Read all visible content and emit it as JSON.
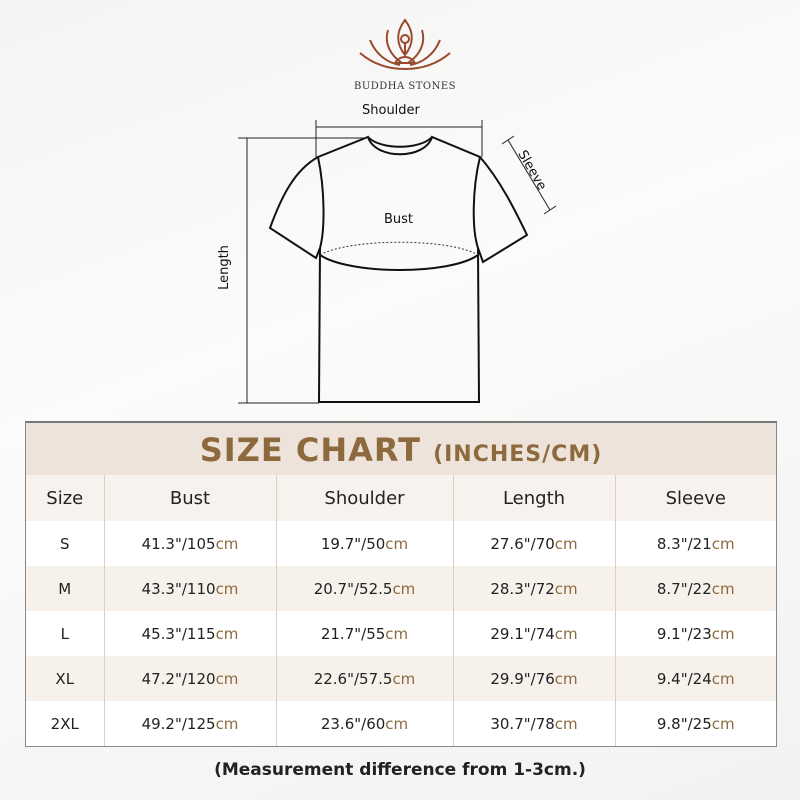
{
  "brand": {
    "name": "BUDDHA STONES",
    "logo": "lotus-meditation-logo"
  },
  "diagram": {
    "shoulder": "Shoulder",
    "sleeve": "Sleeve",
    "bust": "Bust",
    "length": "Length"
  },
  "chart": {
    "title": "SIZE CHART",
    "title_units": "(INCHES/CM)",
    "headers": [
      "Size",
      "Bust",
      "Shoulder",
      "Length",
      "Sleeve"
    ],
    "rows": [
      [
        "S",
        "41.3\"/105",
        "19.7\"/50",
        "27.6\"/70",
        "8.3\"/21"
      ],
      [
        "M",
        "43.3\"/110",
        "20.7\"/52.5",
        "28.3\"/72",
        "8.7\"/22"
      ],
      [
        "L",
        "45.3\"/115",
        "21.7\"/55",
        "29.1\"/74",
        "9.1\"/23"
      ],
      [
        "XL",
        "47.2\"/120",
        "22.6\"/57.5",
        "29.9\"/76",
        "9.4\"/24"
      ],
      [
        "2XL",
        "49.2\"/125",
        "23.6\"/60",
        "30.7\"/78",
        "9.8\"/25"
      ]
    ],
    "unit": "cm"
  },
  "note": "(Measurement difference from 1-3cm.)",
  "colors": {
    "accent": "#8c6a3d",
    "header_bg": "#eee3da",
    "logo": "#9a4a2c"
  }
}
